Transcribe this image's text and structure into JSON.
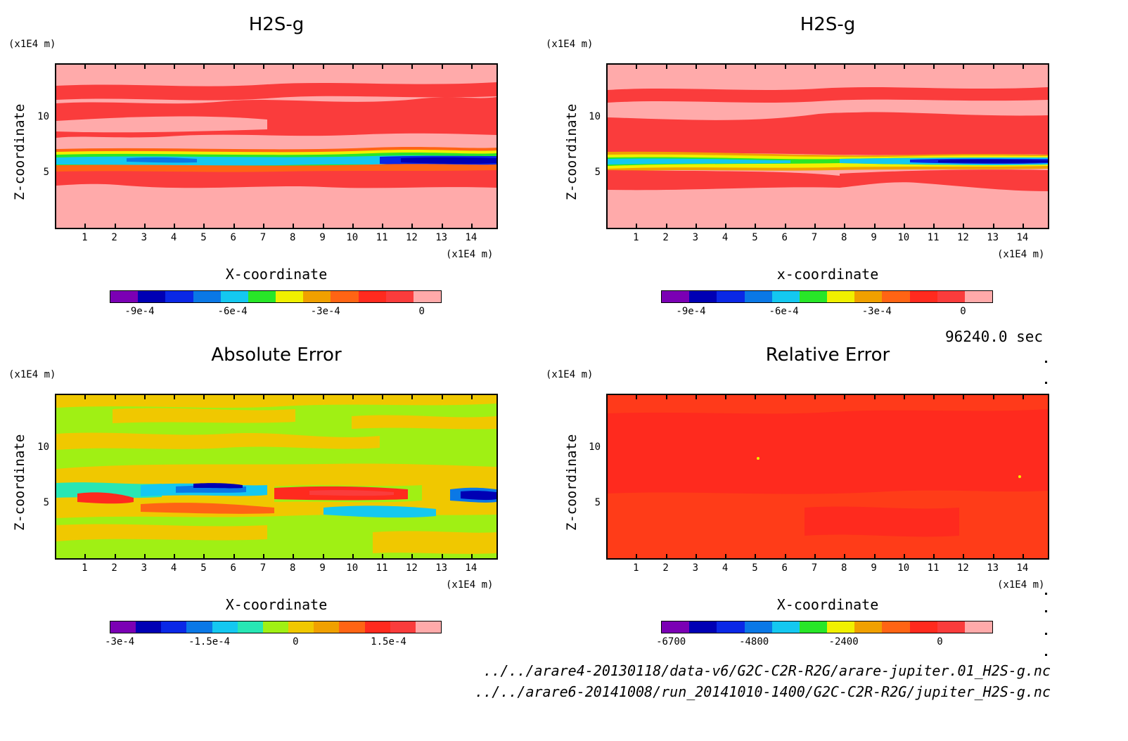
{
  "time_label": "96240.0 sec",
  "file_paths": [
    "../../arare4-20130118/data-v6/G2C-C2R-R2G/arare-jupiter.01_H2S-g.nc",
    "../../arare6-20141008/run_20141010-1400/G2C-C2R-R2G/jupiter_H2S-g.nc"
  ],
  "chart_data": [
    {
      "type": "heatmap",
      "title": "H2S-g",
      "xlabel": "X-coordinate",
      "ylabel": "Z-coordinate",
      "x_unit": "(x1E4 m)",
      "y_unit": "(x1E4 m)",
      "x_ticks": [
        "1",
        "2",
        "3",
        "4",
        "5",
        "6",
        "7",
        "8",
        "9",
        "10",
        "11",
        "12",
        "13",
        "14"
      ],
      "y_ticks": [
        "5",
        "10"
      ],
      "colorbar_ticks": [
        "-9e-4",
        "-6e-4",
        "-3e-4",
        "0"
      ],
      "colorbar_colors": [
        "#7b00b4",
        "#0000b4",
        "#0a28e6",
        "#0a78e6",
        "#14c8f0",
        "#28e628",
        "#f0f000",
        "#f0a000",
        "#ff6414",
        "#ff2a1e",
        "#fa3c3c",
        "#ffaaaa"
      ]
    },
    {
      "type": "heatmap",
      "title": "H2S-g",
      "xlabel": "x-coordinate",
      "ylabel": "Z-coordinate",
      "x_unit": "(x1E4 m)",
      "y_unit": "(x1E4 m)",
      "x_ticks": [
        "1",
        "2",
        "3",
        "4",
        "5",
        "6",
        "7",
        "8",
        "9",
        "10",
        "11",
        "12",
        "13",
        "14"
      ],
      "y_ticks": [
        "5",
        "10"
      ],
      "colorbar_ticks": [
        "-9e-4",
        "-6e-4",
        "-3e-4",
        "0"
      ],
      "colorbar_colors": [
        "#7b00b4",
        "#0000b4",
        "#0a28e6",
        "#0a78e6",
        "#14c8f0",
        "#28e628",
        "#f0f000",
        "#f0a000",
        "#ff6414",
        "#ff2a1e",
        "#fa3c3c",
        "#ffaaaa"
      ]
    },
    {
      "type": "heatmap",
      "title": "Absolute Error",
      "xlabel": "X-coordinate",
      "ylabel": "Z-coordinate",
      "x_unit": "(x1E4 m)",
      "y_unit": "(x1E4 m)",
      "x_ticks": [
        "1",
        "2",
        "3",
        "4",
        "5",
        "6",
        "7",
        "8",
        "9",
        "10",
        "11",
        "12",
        "13",
        "14"
      ],
      "y_ticks": [
        "5",
        "10"
      ],
      "colorbar_ticks": [
        "-3e-4",
        "-1.5e-4",
        "0",
        "1.5e-4"
      ],
      "colorbar_colors": [
        "#7b00b4",
        "#0000b4",
        "#0a28e6",
        "#0a78e6",
        "#14c8f0",
        "#28e6b4",
        "#a0f014",
        "#f0c800",
        "#f0a000",
        "#ff6414",
        "#ff2a1e",
        "#fa3c3c",
        "#ffaaaa"
      ]
    },
    {
      "type": "heatmap",
      "title": "Relative Error",
      "xlabel": "X-coordinate",
      "ylabel": "Z-coordinate",
      "x_unit": "(x1E4 m)",
      "y_unit": "(x1E4 m)",
      "x_ticks": [
        "1",
        "2",
        "3",
        "4",
        "5",
        "6",
        "7",
        "8",
        "9",
        "10",
        "11",
        "12",
        "13",
        "14"
      ],
      "y_ticks": [
        "5",
        "10"
      ],
      "colorbar_ticks": [
        "-6700",
        "-4800",
        "-2400",
        "0"
      ],
      "colorbar_colors": [
        "#7b00b4",
        "#0000b4",
        "#0a28e6",
        "#0a78e6",
        "#14c8f0",
        "#28e628",
        "#f0f000",
        "#f0a000",
        "#ff6414",
        "#ff2a1e",
        "#fa3c3c",
        "#ffaaaa"
      ]
    }
  ]
}
